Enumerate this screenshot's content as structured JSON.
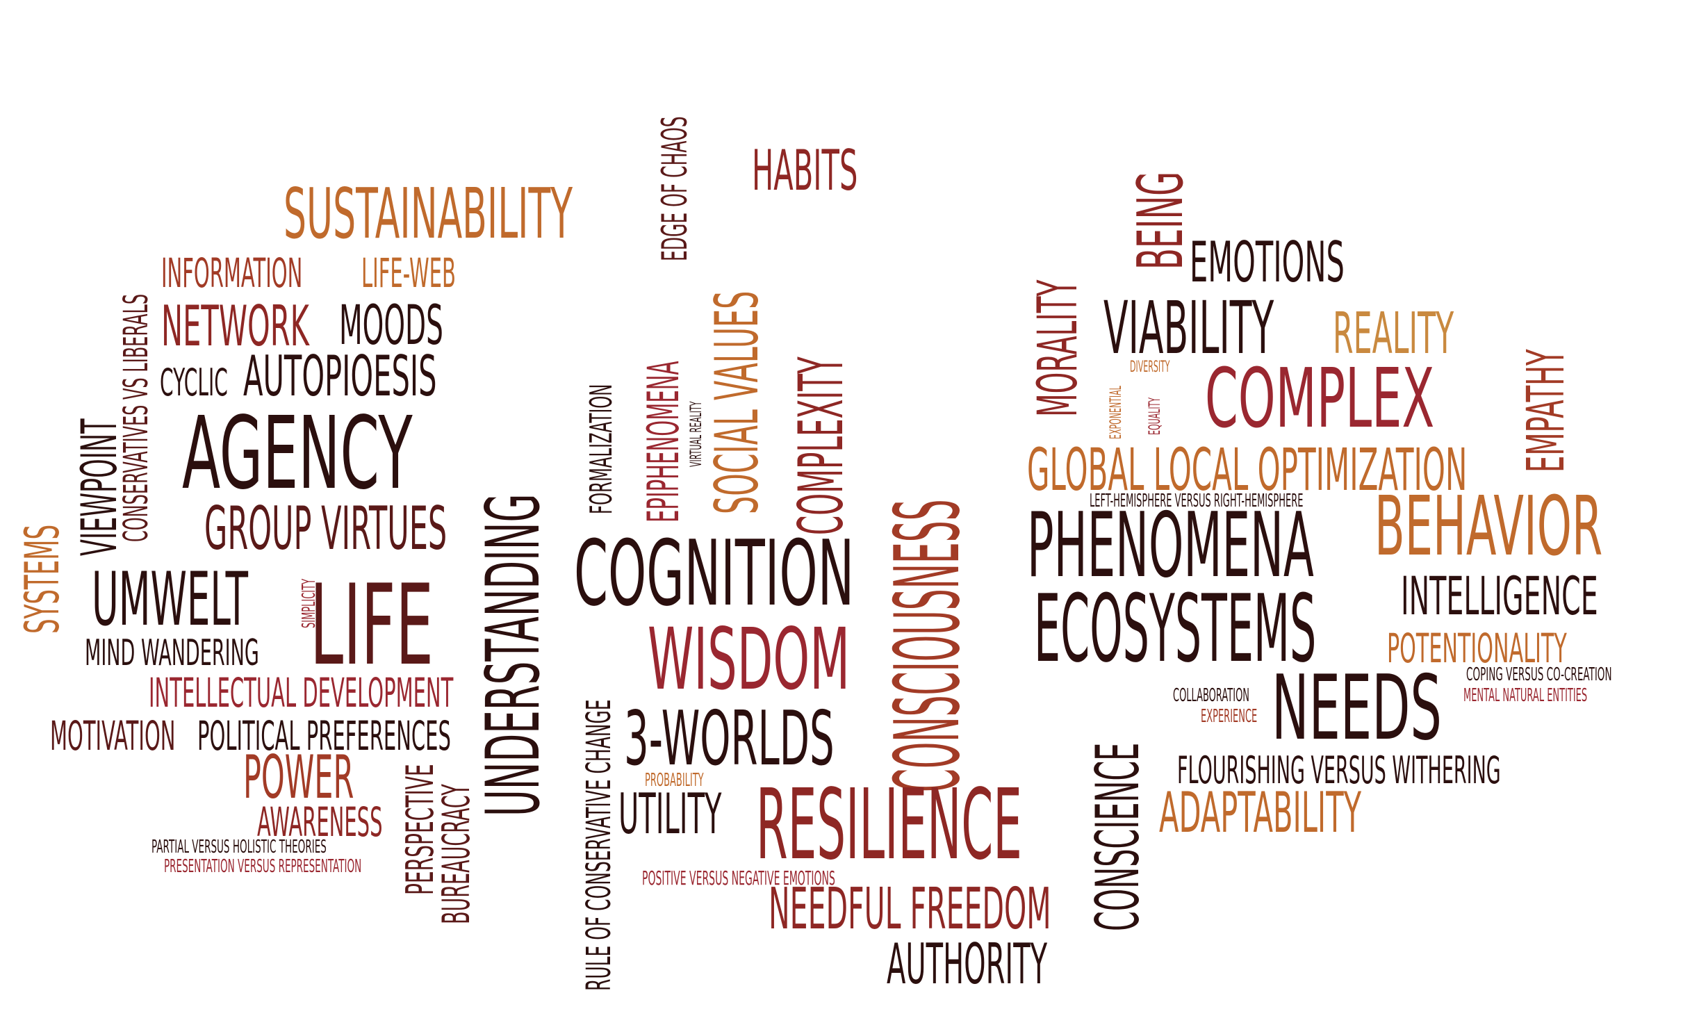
{
  "words": [
    {
      "text": "CONSCIOUSNESS",
      "color": "#a23b26"
    },
    {
      "text": "UNDERSTANDING",
      "color": "#2b0f0e"
    },
    {
      "text": "AGENCY",
      "color": "#2b0f0e"
    },
    {
      "text": "SUSTAINABILITY",
      "color": "#c06a2c"
    },
    {
      "text": "BEHAVIOR",
      "color": "#c06a2c"
    },
    {
      "text": "RESILIENCE",
      "color": "#8e2724"
    },
    {
      "text": "COGNITION",
      "color": "#2b0f0e"
    },
    {
      "text": "WISDOM",
      "color": "#9a2730"
    },
    {
      "text": "LIFE",
      "color": "#5a1918"
    },
    {
      "text": "PHENOMENA",
      "color": "#2b0f0e"
    },
    {
      "text": "ECOSYSTEMS",
      "color": "#2b0f0e"
    },
    {
      "text": "COMPLEX",
      "color": "#9a2730"
    },
    {
      "text": "VIABILITY",
      "color": "#2b0f0e"
    },
    {
      "text": "NEEDS",
      "color": "#2b0f0e"
    },
    {
      "text": "3-WORLDS",
      "color": "#2b0f0e"
    },
    {
      "text": "BEING",
      "color": "#8e2724"
    },
    {
      "text": "MORALITY",
      "color": "#8e2724"
    },
    {
      "text": "CONSCIENCE",
      "color": "#2b0f0e"
    },
    {
      "text": "SOCIAL VALUES",
      "color": "#c06a2c"
    },
    {
      "text": "COMPLEXITY",
      "color": "#8e2724"
    },
    {
      "text": "GLOBAL LOCAL OPTIMIZATION",
      "color": "#c06a2c"
    },
    {
      "text": "HABITS",
      "color": "#8e2724"
    },
    {
      "text": "EMOTIONS",
      "color": "#2b0f0e"
    },
    {
      "text": "REALITY",
      "color": "#c9893f"
    },
    {
      "text": "EMPATHY",
      "color": "#a23b26"
    },
    {
      "text": "INTELLIGENCE",
      "color": "#2b0f0e"
    },
    {
      "text": "POTENTIONALITY",
      "color": "#c06a2c"
    },
    {
      "text": "ADAPTABILITY",
      "color": "#c06a2c"
    },
    {
      "text": "FLOURISHING VERSUS WITHERING",
      "color": "#2b0f0e"
    },
    {
      "text": "NEEDFUL FREEDOM",
      "color": "#8e2724"
    },
    {
      "text": "AUTHORITY",
      "color": "#2b0f0e"
    },
    {
      "text": "UTILITY",
      "color": "#2b0f0e"
    },
    {
      "text": "EPIPHENOMENA",
      "color": "#9a2730"
    },
    {
      "text": "EDGE OF CHAOS",
      "color": "#5a1918"
    },
    {
      "text": "FORMALIZATION",
      "color": "#2b0f0e"
    },
    {
      "text": "VIRTUAL REALITY",
      "color": "#2b0f0e"
    },
    {
      "text": "RULE OF CONSERVATIVE CHANGE",
      "color": "#2b0f0e"
    },
    {
      "text": "PROBABILITY",
      "color": "#c06a2c"
    },
    {
      "text": "POSITIVE VERSUS NEGATIVE EMOTIONS",
      "color": "#9a2730"
    },
    {
      "text": "NETWORK",
      "color": "#8e2724"
    },
    {
      "text": "MOODS",
      "color": "#2b0f0e"
    },
    {
      "text": "INFORMATION",
      "color": "#a23b26"
    },
    {
      "text": "LIFE-WEB",
      "color": "#c06a2c"
    },
    {
      "text": "CYCLIC",
      "color": "#2b0f0e"
    },
    {
      "text": "AUTOPIOESIS",
      "color": "#2b0f0e"
    },
    {
      "text": "GROUP VIRTUES",
      "color": "#5a1918"
    },
    {
      "text": "UMWELT",
      "color": "#2b0f0e"
    },
    {
      "text": "MIND WANDERING",
      "color": "#2b0f0e"
    },
    {
      "text": "INTELLECTUAL DEVELOPMENT",
      "color": "#9a2730"
    },
    {
      "text": "MOTIVATION",
      "color": "#5a1918"
    },
    {
      "text": "POLITICAL PREFERENCES",
      "color": "#2b0f0e"
    },
    {
      "text": "POWER",
      "color": "#a23b26"
    },
    {
      "text": "AWARENESS",
      "color": "#8e2724"
    },
    {
      "text": "PARTIAL VERSUS HOLISTIC THEORIES",
      "color": "#2b0f0e"
    },
    {
      "text": "PRESENTATION VERSUS REPRESENTATION",
      "color": "#9a2730"
    },
    {
      "text": "PERSPECTIVE",
      "color": "#5a1918"
    },
    {
      "text": "BUREAUCRACY",
      "color": "#5a1918"
    },
    {
      "text": "SYSTEMS",
      "color": "#c06a2c"
    },
    {
      "text": "VIEWPOINT",
      "color": "#2b0f0e"
    },
    {
      "text": "CONSERVATIVES VS LIBERALS",
      "color": "#5a1918"
    },
    {
      "text": "SIMPLICITY",
      "color": "#9a2730"
    },
    {
      "text": "LEFT-HEMISPHERE VERSUS RIGHT-HEMISPHERE",
      "color": "#2b0f0e"
    },
    {
      "text": "EXPONENTIAL",
      "color": "#c06a2c"
    },
    {
      "text": "DIVERSITY",
      "color": "#c06a2c"
    },
    {
      "text": "EQUALITY",
      "color": "#9a2730"
    },
    {
      "text": "COLLABORATION",
      "color": "#2b0f0e"
    },
    {
      "text": "EXPERIENCE",
      "color": "#a23b26"
    },
    {
      "text": "COPING VERSUS CO-CREATION",
      "color": "#2b0f0e"
    },
    {
      "text": "MENTAL NATURAL ENTITIES",
      "color": "#9a2730"
    }
  ]
}
